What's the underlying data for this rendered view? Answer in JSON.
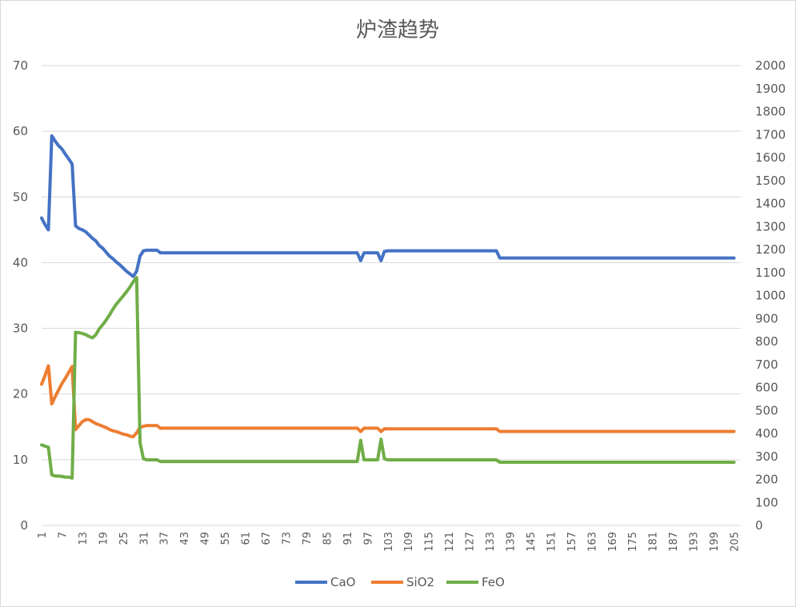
{
  "chart_data": {
    "type": "line",
    "title": "炉渣趋势",
    "xlabel": "",
    "ylabel": "",
    "legend_position": "bottom",
    "grid": true,
    "x_range": [
      1,
      207
    ],
    "x_tick_labels": [
      1,
      7,
      13,
      19,
      25,
      31,
      37,
      43,
      49,
      55,
      61,
      67,
      73,
      79,
      85,
      91,
      97,
      103,
      109,
      115,
      121,
      127,
      133,
      139,
      145,
      151,
      157,
      163,
      169,
      175,
      181,
      187,
      193,
      199,
      205
    ],
    "y_left": {
      "min": 0,
      "max": 70,
      "step": 10
    },
    "y_right": {
      "min": 0,
      "max": 2000,
      "step": 100
    },
    "series": [
      {
        "name": "CaO",
        "color": "#4472c4",
        "axis": "left",
        "points": [
          [
            1,
            46.8
          ],
          [
            2,
            45.8
          ],
          [
            3,
            45.0
          ],
          [
            4,
            59.3
          ],
          [
            5,
            58.5
          ],
          [
            6,
            57.8
          ],
          [
            7,
            57.3
          ],
          [
            8,
            56.5
          ],
          [
            9,
            55.8
          ],
          [
            10,
            55.0
          ],
          [
            11,
            45.6
          ],
          [
            12,
            45.2
          ],
          [
            13,
            45.0
          ],
          [
            14,
            44.7
          ],
          [
            15,
            44.2
          ],
          [
            16,
            43.7
          ],
          [
            17,
            43.3
          ],
          [
            18,
            42.6
          ],
          [
            19,
            42.2
          ],
          [
            20,
            41.6
          ],
          [
            21,
            41.0
          ],
          [
            22,
            40.6
          ],
          [
            23,
            40.1
          ],
          [
            24,
            39.7
          ],
          [
            25,
            39.2
          ],
          [
            26,
            38.7
          ],
          [
            27,
            38.3
          ],
          [
            28,
            37.9
          ],
          [
            29,
            38.7
          ],
          [
            30,
            41.0
          ],
          [
            31,
            41.8
          ],
          [
            32,
            41.9
          ],
          [
            33,
            41.9
          ],
          [
            34,
            41.9
          ],
          [
            35,
            41.9
          ],
          [
            36,
            41.5
          ],
          [
            38,
            41.5
          ],
          [
            60,
            41.5
          ],
          [
            80,
            41.5
          ],
          [
            94,
            41.5
          ],
          [
            95,
            40.3
          ],
          [
            96,
            41.5
          ],
          [
            100,
            41.5
          ],
          [
            101,
            40.3
          ],
          [
            102,
            41.7
          ],
          [
            103,
            41.8
          ],
          [
            120,
            41.8
          ],
          [
            135,
            41.8
          ],
          [
            136,
            40.7
          ],
          [
            160,
            40.7
          ],
          [
            205,
            40.7
          ]
        ]
      },
      {
        "name": "SiO2",
        "color": "#ed7d31",
        "axis": "left",
        "points": [
          [
            1,
            21.5
          ],
          [
            2,
            22.8
          ],
          [
            3,
            24.3
          ],
          [
            4,
            18.5
          ],
          [
            5,
            19.6
          ],
          [
            6,
            20.6
          ],
          [
            7,
            21.6
          ],
          [
            8,
            22.4
          ],
          [
            9,
            23.3
          ],
          [
            10,
            24.2
          ],
          [
            11,
            14.6
          ],
          [
            12,
            15.2
          ],
          [
            13,
            15.8
          ],
          [
            14,
            16.1
          ],
          [
            15,
            16.1
          ],
          [
            16,
            15.8
          ],
          [
            17,
            15.5
          ],
          [
            18,
            15.3
          ],
          [
            19,
            15.1
          ],
          [
            20,
            14.9
          ],
          [
            21,
            14.6
          ],
          [
            22,
            14.4
          ],
          [
            23,
            14.3
          ],
          [
            24,
            14.1
          ],
          [
            25,
            13.9
          ],
          [
            26,
            13.8
          ],
          [
            27,
            13.6
          ],
          [
            28,
            13.5
          ],
          [
            29,
            14.1
          ],
          [
            30,
            14.9
          ],
          [
            31,
            15.1
          ],
          [
            32,
            15.2
          ],
          [
            33,
            15.2
          ],
          [
            34,
            15.2
          ],
          [
            35,
            15.2
          ],
          [
            36,
            14.8
          ],
          [
            60,
            14.8
          ],
          [
            80,
            14.8
          ],
          [
            94,
            14.8
          ],
          [
            95,
            14.3
          ],
          [
            96,
            14.8
          ],
          [
            100,
            14.8
          ],
          [
            101,
            14.3
          ],
          [
            102,
            14.7
          ],
          [
            120,
            14.7
          ],
          [
            135,
            14.7
          ],
          [
            136,
            14.3
          ],
          [
            160,
            14.3
          ],
          [
            205,
            14.3
          ]
        ]
      },
      {
        "name": "FeO",
        "color": "#70ad47",
        "axis": "right",
        "points": [
          [
            1,
            350
          ],
          [
            2,
            345
          ],
          [
            3,
            340
          ],
          [
            4,
            220
          ],
          [
            5,
            215
          ],
          [
            6,
            215
          ],
          [
            7,
            213
          ],
          [
            8,
            210
          ],
          [
            9,
            210
          ],
          [
            10,
            206
          ],
          [
            11,
            840
          ],
          [
            12,
            838
          ],
          [
            13,
            835
          ],
          [
            14,
            830
          ],
          [
            15,
            822
          ],
          [
            16,
            816
          ],
          [
            17,
            830
          ],
          [
            18,
            855
          ],
          [
            19,
            873
          ],
          [
            20,
            893
          ],
          [
            21,
            915
          ],
          [
            22,
            940
          ],
          [
            23,
            962
          ],
          [
            24,
            980
          ],
          [
            25,
            997
          ],
          [
            26,
            1016
          ],
          [
            27,
            1036
          ],
          [
            28,
            1060
          ],
          [
            29,
            1078
          ],
          [
            30,
            360
          ],
          [
            31,
            290
          ],
          [
            32,
            285
          ],
          [
            33,
            285
          ],
          [
            34,
            285
          ],
          [
            35,
            285
          ],
          [
            36,
            278
          ],
          [
            60,
            278
          ],
          [
            80,
            278
          ],
          [
            94,
            278
          ],
          [
            95,
            370
          ],
          [
            96,
            285
          ],
          [
            97,
            285
          ],
          [
            100,
            285
          ],
          [
            101,
            375
          ],
          [
            102,
            290
          ],
          [
            103,
            285
          ],
          [
            120,
            285
          ],
          [
            135,
            285
          ],
          [
            136,
            275
          ],
          [
            160,
            275
          ],
          [
            205,
            275
          ]
        ]
      }
    ]
  }
}
